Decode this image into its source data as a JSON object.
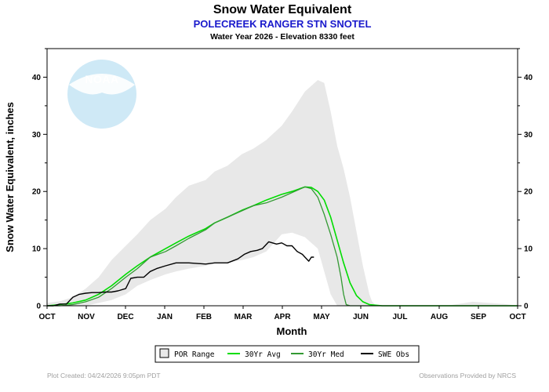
{
  "colors": {
    "background": "#ffffff",
    "por_range": "#e8e8e8",
    "avg": "#00dd00",
    "med": "#339933",
    "obs": "#000000",
    "subtitle": "#1a1acc",
    "footer": "#a0a0a0",
    "logo": "#cce8f6"
  },
  "chart_data": {
    "type": "line",
    "title": "Snow Water Equivalent",
    "subtitle": "POLECREEK RANGER STN SNOTEL",
    "note": "Water Year 2026 -  Elevation 8330 feet",
    "xlabel": "Month",
    "ylabel": "Snow Water Equivalent, inches",
    "x_ticks": [
      "OCT",
      "NOV",
      "DEC",
      "JAN",
      "FEB",
      "MAR",
      "APR",
      "MAY",
      "JUN",
      "JUL",
      "AUG",
      "SEP",
      "OCT"
    ],
    "x_range_days": [
      0,
      365
    ],
    "ylim": [
      0,
      45
    ],
    "y_ticks": [
      0,
      10,
      20,
      30,
      40
    ],
    "grid": false,
    "legend_position": "bottom",
    "series": [
      {
        "name": "POR Range",
        "kind": "band",
        "x": [
          0,
          10,
          20,
          30,
          40,
          50,
          61,
          70,
          80,
          92,
          100,
          110,
          123,
          130,
          140,
          151,
          160,
          170,
          182,
          190,
          200,
          210,
          215,
          220,
          225,
          230,
          235,
          240,
          245,
          250,
          252,
          255,
          260,
          270,
          290,
          310,
          330,
          355,
          365
        ],
        "lower": [
          0,
          0,
          0,
          0,
          0.5,
          1,
          2,
          3.5,
          4.5,
          5.5,
          6,
          6.5,
          7,
          7.5,
          7.5,
          8,
          8.5,
          9.5,
          12.5,
          12.8,
          12,
          10,
          6,
          2,
          0,
          0,
          0,
          0,
          0,
          0,
          0,
          0,
          0,
          0,
          0,
          0,
          0,
          0,
          0
        ],
        "upper": [
          0.5,
          0.8,
          1.5,
          3,
          5,
          8,
          10.5,
          12.5,
          15,
          17,
          19,
          21,
          22,
          23.5,
          24.5,
          26.5,
          27.5,
          29,
          31.5,
          34,
          37.5,
          39.5,
          39,
          34,
          28,
          24,
          19,
          13,
          7,
          2,
          0.8,
          0,
          0,
          0,
          0,
          0,
          0.7,
          0.3,
          0
        ]
      },
      {
        "name": "30Yr Avg",
        "kind": "line",
        "x": [
          0,
          10,
          20,
          30,
          40,
          50,
          61,
          70,
          80,
          92,
          100,
          110,
          123,
          130,
          140,
          151,
          160,
          170,
          182,
          190,
          200,
          205,
          210,
          215,
          220,
          225,
          230,
          235,
          240,
          245,
          250,
          255,
          260,
          270,
          365
        ],
        "y": [
          0,
          0.2,
          0.5,
          1,
          2,
          3.5,
          5.5,
          7,
          8.5,
          10,
          11,
          12.2,
          13.5,
          14.5,
          15.5,
          16.7,
          17.5,
          18.5,
          19.5,
          20,
          20.8,
          20.7,
          20,
          18.5,
          15.5,
          11.5,
          7.5,
          4,
          1.8,
          0.7,
          0.2,
          0.1,
          0,
          0,
          0
        ]
      },
      {
        "name": "30Yr Med",
        "kind": "line",
        "x": [
          0,
          10,
          20,
          30,
          40,
          50,
          61,
          70,
          80,
          92,
          100,
          110,
          123,
          130,
          140,
          151,
          160,
          170,
          182,
          190,
          200,
          205,
          210,
          215,
          220,
          225,
          228,
          230,
          232,
          235,
          365
        ],
        "y": [
          0,
          0,
          0.2,
          0.7,
          1.5,
          3,
          5,
          6.5,
          8.5,
          9.5,
          10.5,
          11.8,
          13.3,
          14.5,
          15.5,
          16.6,
          17.5,
          18,
          19,
          19.8,
          20.8,
          20.5,
          19,
          16,
          12.5,
          8.5,
          5,
          2,
          0.2,
          0,
          0
        ]
      },
      {
        "name": "SWE Obs",
        "kind": "line",
        "x": [
          0,
          5,
          10,
          15,
          20,
          25,
          30,
          35,
          40,
          45,
          50,
          55,
          61,
          65,
          70,
          75,
          80,
          85,
          92,
          100,
          110,
          123,
          130,
          140,
          148,
          153,
          158,
          163,
          167,
          172,
          178,
          182,
          186,
          190,
          194,
          198,
          200,
          203,
          205,
          207
        ],
        "y": [
          0,
          0,
          0.3,
          0.3,
          1.5,
          2,
          2.2,
          2.3,
          2.3,
          2.4,
          2.4,
          2.6,
          3,
          4.8,
          5,
          5,
          6,
          6.5,
          7,
          7.5,
          7.5,
          7.3,
          7.5,
          7.5,
          8.2,
          9,
          9.5,
          9.7,
          10,
          11.2,
          10.8,
          11,
          10.5,
          10.5,
          9.5,
          9,
          8.5,
          7.8,
          8.5,
          8.5
        ]
      }
    ]
  },
  "legend": {
    "items": [
      {
        "key": "por",
        "label": "POR Range"
      },
      {
        "key": "avg",
        "label": "30Yr Avg"
      },
      {
        "key": "med",
        "label": "30Yr Med"
      },
      {
        "key": "obs",
        "label": "SWE Obs"
      }
    ]
  },
  "logo": {
    "text": "NOAA"
  },
  "footer": {
    "created": "Plot Created: 04/24/2026 9:05pm PDT",
    "provided": "Observations Provided by NRCS"
  }
}
